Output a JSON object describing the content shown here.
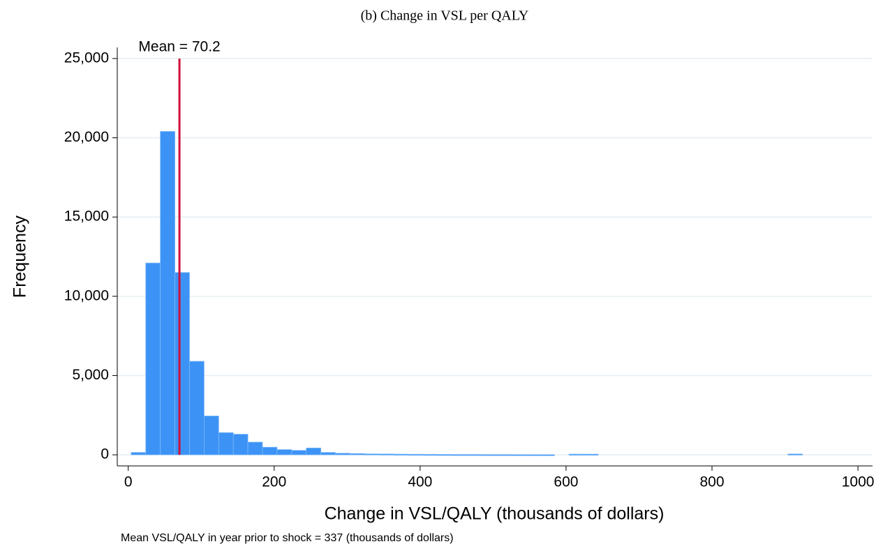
{
  "chart_data": {
    "type": "histogram",
    "title": "(b) Change in VSL per QALY",
    "xlabel": "Change in VSL/QALY (thousands of dollars)",
    "ylabel": "Frequency",
    "note": "Mean VSL/QALY in year prior to shock = 337 (thousands of dollars)",
    "bins": [
      4,
      24,
      44,
      64,
      84,
      104,
      124,
      144,
      164,
      184,
      204,
      224,
      244,
      264,
      284,
      304,
      324,
      344,
      364,
      384,
      404,
      424,
      444,
      464,
      484,
      504,
      524,
      544,
      564,
      584,
      604,
      624,
      644,
      664,
      684,
      704,
      724,
      744,
      764,
      784,
      804,
      824,
      844,
      864,
      884,
      904,
      924,
      944,
      964,
      984,
      1004
    ],
    "values": [
      150,
      12100,
      20400,
      11500,
      5900,
      2450,
      1400,
      1300,
      800,
      480,
      330,
      280,
      430,
      150,
      100,
      80,
      60,
      50,
      40,
      35,
      30,
      25,
      20,
      20,
      15,
      15,
      12,
      10,
      8,
      0,
      40,
      40,
      0,
      0,
      0,
      0,
      0,
      0,
      0,
      0,
      0,
      0,
      0,
      0,
      0,
      50,
      0,
      0,
      0,
      0
    ],
    "color": "#3d93f5",
    "mean_line": {
      "value": 70.2,
      "label": "Mean = 70.2",
      "color": "#d0103a"
    },
    "xlim": [
      -15,
      1020
    ],
    "ylim": [
      -700,
      25700
    ],
    "xticks": [
      0,
      200,
      400,
      600,
      800,
      1000
    ],
    "yticks": [
      0,
      {
        "value": 5000,
        "label": "5,000"
      },
      {
        "value": 10000,
        "label": "10,000"
      },
      {
        "value": 15000,
        "label": "15,000"
      },
      {
        "value": 20000,
        "label": "20,000"
      },
      {
        "value": 25000,
        "label": "25,000"
      }
    ],
    "grid": true
  }
}
